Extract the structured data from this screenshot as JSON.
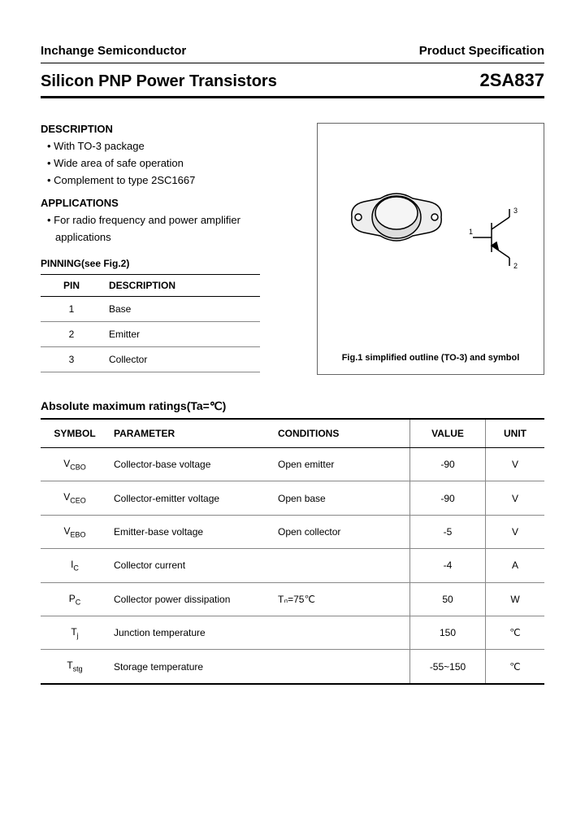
{
  "header": {
    "company": "Inchange Semiconductor",
    "spec": "Product Specification"
  },
  "title": {
    "left": "Silicon PNP Power Transistors",
    "right": "2SA837"
  },
  "description": {
    "heading": "DESCRIPTION",
    "items": [
      "With TO-3 package",
      "Wide area of safe operation",
      "Complement to type 2SC1667"
    ]
  },
  "applications": {
    "heading": "APPLICATIONS",
    "line1": "• For radio frequency and power amplifier",
    "line2": "applications"
  },
  "pinning": {
    "heading": "PINNING(see Fig.2)",
    "col_pin": "PIN",
    "col_desc": "DESCRIPTION",
    "rows": [
      {
        "pin": "1",
        "desc": "Base"
      },
      {
        "pin": "2",
        "desc": "Emitter"
      },
      {
        "pin": "3",
        "desc": "Collector"
      }
    ]
  },
  "figure": {
    "caption": "Fig.1 simplified outline (TO-3) and symbol",
    "symbol_labels": {
      "base": "1",
      "emitter": "2",
      "collector": "3"
    },
    "colors": {
      "border": "#666666",
      "stroke": "#000000",
      "fill_light": "#eeeeee",
      "fill_mid": "#cccccc"
    }
  },
  "ratings": {
    "heading": "Absolute maximum ratings(Ta=℃)",
    "columns": {
      "symbol": "SYMBOL",
      "parameter": "PARAMETER",
      "conditions": "CONDITIONS",
      "value": "VALUE",
      "unit": "UNIT"
    },
    "rows": [
      {
        "sym": "V",
        "sub": "CBO",
        "param": "Collector-base voltage",
        "cond": "Open emitter",
        "val": "-90",
        "unit": "V"
      },
      {
        "sym": "V",
        "sub": "CEO",
        "param": "Collector-emitter voltage",
        "cond": "Open base",
        "val": "-90",
        "unit": "V"
      },
      {
        "sym": "V",
        "sub": "EBO",
        "param": "Emitter-base voltage",
        "cond": "Open collector",
        "val": "-5",
        "unit": "V"
      },
      {
        "sym": "I",
        "sub": "C",
        "param": "Collector current",
        "cond": "",
        "val": "-4",
        "unit": "A"
      },
      {
        "sym": "P",
        "sub": "C",
        "param": "Collector power dissipation",
        "cond": "Tₙ=75℃",
        "val": "50",
        "unit": "W"
      },
      {
        "sym": "T",
        "sub": "j",
        "param": "Junction temperature",
        "cond": "",
        "val": "150",
        "unit": "℃"
      },
      {
        "sym": "T",
        "sub": "stg",
        "param": "Storage temperature",
        "cond": "",
        "val": "-55~150",
        "unit": "℃"
      }
    ]
  },
  "style": {
    "page_bg": "#ffffff",
    "text_color": "#000000",
    "rule_color": "#000000",
    "row_border": "#888888",
    "font_family": "Arial",
    "title_fontsize_pt": 15,
    "body_fontsize_pt": 10
  }
}
